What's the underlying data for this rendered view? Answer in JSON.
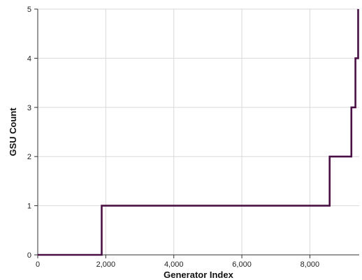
{
  "chart_data": {
    "type": "line",
    "step": true,
    "title": "",
    "xlabel": "Generator Index",
    "ylabel": "GSU Count",
    "xlim": [
      0,
      9450
    ],
    "ylim": [
      0,
      5
    ],
    "x_ticks": [
      0,
      2000,
      4000,
      6000,
      8000
    ],
    "x_tick_labels": [
      "0",
      "2,000",
      "4,000",
      "6,000",
      "8,000"
    ],
    "y_ticks": [
      0,
      1,
      2,
      3,
      4,
      5
    ],
    "y_tick_labels": [
      "0",
      "1",
      "2",
      "3",
      "4",
      "5"
    ],
    "grid": true,
    "line_color": "#4a1045",
    "series": [
      {
        "points": [
          [
            0,
            0
          ],
          [
            1880,
            0
          ],
          [
            1880,
            1
          ],
          [
            8580,
            1
          ],
          [
            8580,
            2
          ],
          [
            9220,
            2
          ],
          [
            9220,
            3
          ],
          [
            9340,
            3
          ],
          [
            9340,
            4
          ],
          [
            9420,
            4
          ],
          [
            9420,
            5
          ]
        ]
      }
    ]
  }
}
